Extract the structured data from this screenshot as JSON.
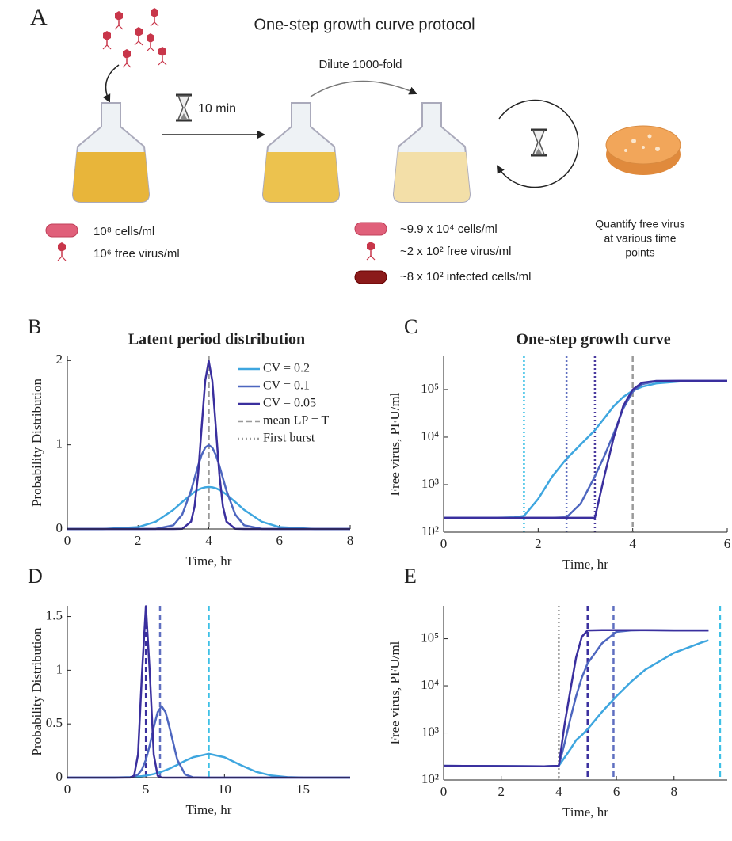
{
  "protocol": {
    "panel": "A",
    "title": "One-step growth curve protocol",
    "step_time": "10 min",
    "dilution": "Dilute 1000-fold",
    "initial": [
      "10⁸ cells/ml",
      "10⁶ free virus/ml"
    ],
    "after_dilution": [
      "~9.9 x 10⁴ cells/ml",
      "~2 x 10² free virus/ml",
      "~8 x 10² infected cells/ml"
    ],
    "quantify": [
      "Quantify free virus",
      "at various time",
      "points"
    ]
  },
  "chart_data": [
    {
      "type": "line",
      "panel": "B",
      "title": "Latent period distribution",
      "xlabel": "Time, hr",
      "ylabel": "Probability Distribution",
      "x": [
        0,
        1,
        2,
        2.5,
        3,
        3.25,
        3.5,
        3.6,
        3.7,
        3.8,
        3.9,
        4,
        4.1,
        4.2,
        4.3,
        4.4,
        4.5,
        4.75,
        5,
        5.5,
        6,
        7,
        8
      ],
      "series": [
        {
          "name": "CV = 0.2",
          "color": "#3ea6df",
          "values": [
            0,
            0.0004,
            0.022,
            0.086,
            0.228,
            0.321,
            0.41,
            0.44,
            0.465,
            0.484,
            0.495,
            0.499,
            0.495,
            0.484,
            0.465,
            0.44,
            0.41,
            0.321,
            0.228,
            0.086,
            0.022,
            0.0004,
            0
          ]
        },
        {
          "name": "CV = 0.1",
          "color": "#4d66bf",
          "values": [
            0,
            0,
            0,
            0.0009,
            0.044,
            0.172,
            0.457,
            0.605,
            0.753,
            0.88,
            0.967,
            0.997,
            0.967,
            0.88,
            0.753,
            0.605,
            0.457,
            0.172,
            0.044,
            0.0009,
            0,
            0,
            0
          ]
        },
        {
          "name": "CV = 0.05",
          "color": "#3a2f9e",
          "values": [
            0,
            0,
            0,
            0,
            0,
            0.0018,
            0.088,
            0.27,
            0.648,
            1.21,
            1.76,
            1.995,
            1.76,
            1.21,
            0.648,
            0.27,
            0.088,
            0.0018,
            0,
            0,
            0,
            0,
            0
          ]
        }
      ],
      "vlines": [
        {
          "x": 4,
          "color": "#9a9a9a",
          "style": "dashed"
        }
      ],
      "legend_lines": [
        {
          "name": "mean LP = T",
          "color": "#9a9a9a",
          "style": "dashed"
        },
        {
          "name": "First burst",
          "color": "#9a9a9a",
          "style": "dotted"
        }
      ],
      "xlim": [
        0,
        8
      ],
      "xticks": [
        0,
        2,
        4,
        6,
        8
      ],
      "ylim": [
        0,
        2.05
      ],
      "yticks": [
        0,
        1,
        2
      ]
    },
    {
      "type": "line",
      "panel": "C",
      "title": "One-step growth curve",
      "xlabel": "Time, hr",
      "ylabel": "Free virus, PFU/ml",
      "yscale": "log",
      "x": [
        0,
        1,
        1.5,
        1.7,
        2,
        2.3,
        2.6,
        2.9,
        3.2,
        3.4,
        3.6,
        3.8,
        4,
        4.2,
        4.5,
        5,
        6
      ],
      "series": [
        {
          "name": "CV = 0.2",
          "color": "#3ea6df",
          "values": [
            200,
            200,
            205,
            220,
            500,
            1500,
            3500,
            7000,
            14000,
            25000,
            45000,
            70000,
            95000,
            115000,
            135000,
            148000,
            150000
          ]
        },
        {
          "name": "CV = 0.1",
          "color": "#4d66bf",
          "values": [
            200,
            200,
            200,
            200,
            200,
            200,
            205,
            400,
            1500,
            4000,
            12000,
            40000,
            90000,
            130000,
            150000,
            152000,
            152000
          ]
        },
        {
          "name": "CV = 0.05",
          "color": "#3a2f9e",
          "values": [
            200,
            200,
            200,
            200,
            200,
            200,
            200,
            200,
            200,
            1500,
            10000,
            45000,
            100000,
            140000,
            152000,
            153000,
            153000
          ]
        }
      ],
      "vlines": [
        {
          "x": 1.7,
          "color": "#3ec0e6",
          "style": "dotted"
        },
        {
          "x": 2.6,
          "color": "#5f6fc0",
          "style": "dotted"
        },
        {
          "x": 3.2,
          "color": "#4a3a9e",
          "style": "dotted"
        },
        {
          "x": 4,
          "color": "#9a9a9a",
          "style": "dashed"
        }
      ],
      "xlim": [
        0,
        6
      ],
      "xticks": [
        0,
        2,
        4,
        6
      ],
      "ylim": [
        100,
        500000
      ],
      "yticks": [
        {
          "value": 100,
          "label": "10²"
        },
        {
          "value": 1000,
          "label": "10³"
        },
        {
          "value": 10000,
          "label": "10⁴"
        },
        {
          "value": 100000,
          "label": "10⁵"
        }
      ]
    },
    {
      "type": "line",
      "panel": "D",
      "xlabel": "Time, hr",
      "ylabel": "Probability Distribution",
      "x": [
        0,
        2,
        3,
        4,
        4.25,
        4.5,
        4.75,
        5,
        5.25,
        5.5,
        5.75,
        6,
        6.25,
        6.5,
        7,
        7.5,
        8,
        9,
        10,
        11,
        12,
        13,
        14,
        15,
        18
      ],
      "series": [
        {
          "name": "CV = 0.2",
          "color": "#3ea6df",
          "values": [
            0,
            0.0001,
            0.0009,
            0.0047,
            0.0068,
            0.0097,
            0.0136,
            0.0188,
            0.0253,
            0.0335,
            0.0434,
            0.0553,
            0.069,
            0.084,
            0.119,
            0.157,
            0.19,
            0.222,
            0.19,
            0.119,
            0.055,
            0.019,
            0.0047,
            0.0009,
            0
          ]
        },
        {
          "name": "CV = 0.1",
          "color": "#4d66bf",
          "values": [
            0,
            0,
            0,
            0.0026,
            0.0095,
            0.029,
            0.076,
            0.166,
            0.304,
            0.47,
            0.61,
            0.665,
            0.61,
            0.47,
            0.166,
            0.029,
            0.0026,
            0,
            0,
            0,
            0,
            0,
            0,
            0,
            0
          ]
        },
        {
          "name": "CV = 0.05",
          "color": "#3a2f9e",
          "values": [
            0,
            0,
            0,
            0.0005,
            0.018,
            0.216,
            0.968,
            1.596,
            0.968,
            0.216,
            0.018,
            0.0005,
            0,
            0,
            0,
            0,
            0,
            0,
            0,
            0,
            0,
            0,
            0,
            0,
            0
          ]
        }
      ],
      "vlines": [
        {
          "x": 5,
          "color": "#3a2f9e",
          "style": "dashed"
        },
        {
          "x": 5.9,
          "color": "#5f6fc0",
          "style": "dashed"
        },
        {
          "x": 9,
          "color": "#3ec0e6",
          "style": "dashed"
        }
      ],
      "xlim": [
        0,
        18
      ],
      "xticks": [
        0,
        5,
        10,
        15
      ],
      "ylim": [
        0,
        1.6
      ],
      "yticks": [
        0,
        0.5,
        1,
        1.5
      ]
    },
    {
      "type": "line",
      "panel": "E",
      "xlabel": "Time, hr",
      "ylabel": "Free virus, PFU/ml",
      "yscale": "log",
      "x": [
        0,
        3.5,
        4,
        4.2,
        4.4,
        4.6,
        4.8,
        5,
        5.5,
        6,
        6.5,
        7,
        8,
        9,
        9.2
      ],
      "series": [
        {
          "name": "CV = 0.2",
          "color": "#3ea6df",
          "values": [
            200,
            195,
            200,
            300,
            450,
            700,
            900,
            1200,
            2800,
            6000,
            12000,
            22000,
            50000,
            85000,
            92000
          ]
        },
        {
          "name": "CV = 0.1",
          "color": "#4d66bf",
          "values": [
            200,
            195,
            200,
            600,
            2000,
            6000,
            15000,
            30000,
            80000,
            140000,
            150000,
            152000,
            150000,
            150000,
            150000
          ]
        },
        {
          "name": "CV = 0.05",
          "color": "#3a2f9e",
          "values": [
            200,
            195,
            200,
            1500,
            8000,
            40000,
            110000,
            150000,
            152000,
            152000,
            152000,
            152000,
            150000,
            150000,
            150000
          ]
        }
      ],
      "vlines": [
        {
          "x": 4,
          "color": "#9a9a9a",
          "style": "dotted"
        },
        {
          "x": 5,
          "color": "#3a2f9e",
          "style": "dashed"
        },
        {
          "x": 5.9,
          "color": "#5f6fc0",
          "style": "dashed"
        },
        {
          "x": 9.6,
          "color": "#3ec0e6",
          "style": "dashed"
        }
      ],
      "xlim": [
        0,
        9.85
      ],
      "xticks": [
        0,
        2,
        4,
        6,
        8
      ],
      "ylim": [
        100,
        500000
      ],
      "yticks": [
        {
          "value": 100,
          "label": "10²"
        },
        {
          "value": 1000,
          "label": "10³"
        },
        {
          "value": 10000,
          "label": "10⁴"
        },
        {
          "value": 100000,
          "label": "10⁵"
        }
      ]
    }
  ]
}
